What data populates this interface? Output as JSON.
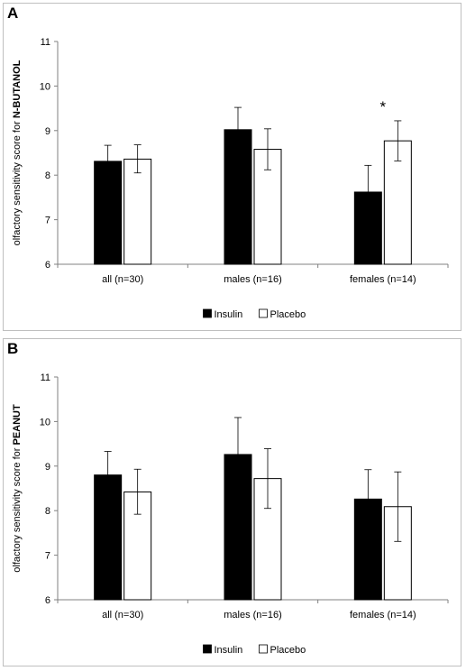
{
  "panels": [
    {
      "letter": "A"
    },
    {
      "letter": "B"
    }
  ],
  "chart_data": [
    {
      "type": "bar",
      "panel": "A",
      "ylabel_prefix": "olfactory sensitivity score for ",
      "ylabel_bold": "N-BUTANOL",
      "ylim": [
        6,
        11
      ],
      "yticks": [
        "6",
        "7",
        "8",
        "9",
        "10",
        "11"
      ],
      "categories": [
        "all (n=30)",
        "males (n=16)",
        "females (n=14)"
      ],
      "series": [
        {
          "name": "Insulin",
          "color": "#000000",
          "values": [
            8.31,
            9.02,
            7.62
          ],
          "err_low": [
            7.95,
            8.52,
            7.02
          ],
          "err_high": [
            8.67,
            9.52,
            8.22
          ]
        },
        {
          "name": "Placebo",
          "color": "#ffffff",
          "values": [
            8.36,
            8.58,
            8.77
          ],
          "err_low": [
            8.05,
            8.12,
            8.32
          ],
          "err_high": [
            8.68,
            9.04,
            9.22
          ]
        }
      ],
      "annotations": [
        {
          "text": "*",
          "category": 2
        }
      ],
      "legend_position": "bottom"
    },
    {
      "type": "bar",
      "panel": "B",
      "ylabel_prefix": "olfactory sensitivity score for ",
      "ylabel_bold": "PEANUT",
      "ylim": [
        6,
        11
      ],
      "yticks": [
        "6",
        "7",
        "8",
        "9",
        "10",
        "11"
      ],
      "categories": [
        "all (n=30)",
        "males (n=16)",
        "females (n=14)"
      ],
      "series": [
        {
          "name": "Insulin",
          "color": "#000000",
          "values": [
            8.8,
            9.26,
            8.26
          ],
          "err_low": [
            8.27,
            8.43,
            7.6
          ],
          "err_high": [
            9.33,
            10.09,
            8.92
          ]
        },
        {
          "name": "Placebo",
          "color": "#ffffff",
          "values": [
            8.42,
            8.72,
            8.09
          ],
          "err_low": [
            7.92,
            8.05,
            7.31
          ],
          "err_high": [
            8.93,
            9.39,
            8.87
          ]
        }
      ],
      "annotations": [],
      "legend_position": "bottom"
    }
  ]
}
